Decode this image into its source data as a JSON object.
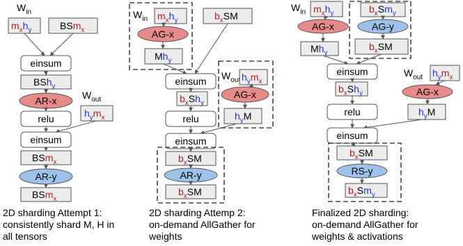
{
  "colors": {
    "all_reduce_fill": "#e68a8a",
    "gather_fill": "#e68a8a",
    "reduce_fill": "#9ec1ea",
    "shard_x_text": "#b0202a",
    "shard_y_text": "#2233cc",
    "tensor_box_fill": "#ececec"
  },
  "labels": {
    "W": "W",
    "in": "in",
    "out": "out",
    "m": "m",
    "h": "h",
    "x": "x",
    "y": "y",
    "BS": "BS",
    "b": "b",
    "S": "S",
    "SM": "SM",
    "M": "M",
    "einsum": "einsum",
    "relu": "relu",
    "ar_x": "AR-x",
    "ar_y": "AR-y",
    "ag_x": "AG-x",
    "ag_y": "AG-y",
    "rs_y": "RS-y"
  },
  "captions": {
    "attempt1": [
      "2D sharding Attempt 1:",
      "consistently shard M, H in",
      "all tensors"
    ],
    "attempt2": [
      "2D sharding Attemp 2:",
      "on-demand AllGather for",
      "weights"
    ],
    "final": [
      "Finalized 2D sharding:",
      "on-demand AllGather for",
      "weights & activations"
    ]
  }
}
